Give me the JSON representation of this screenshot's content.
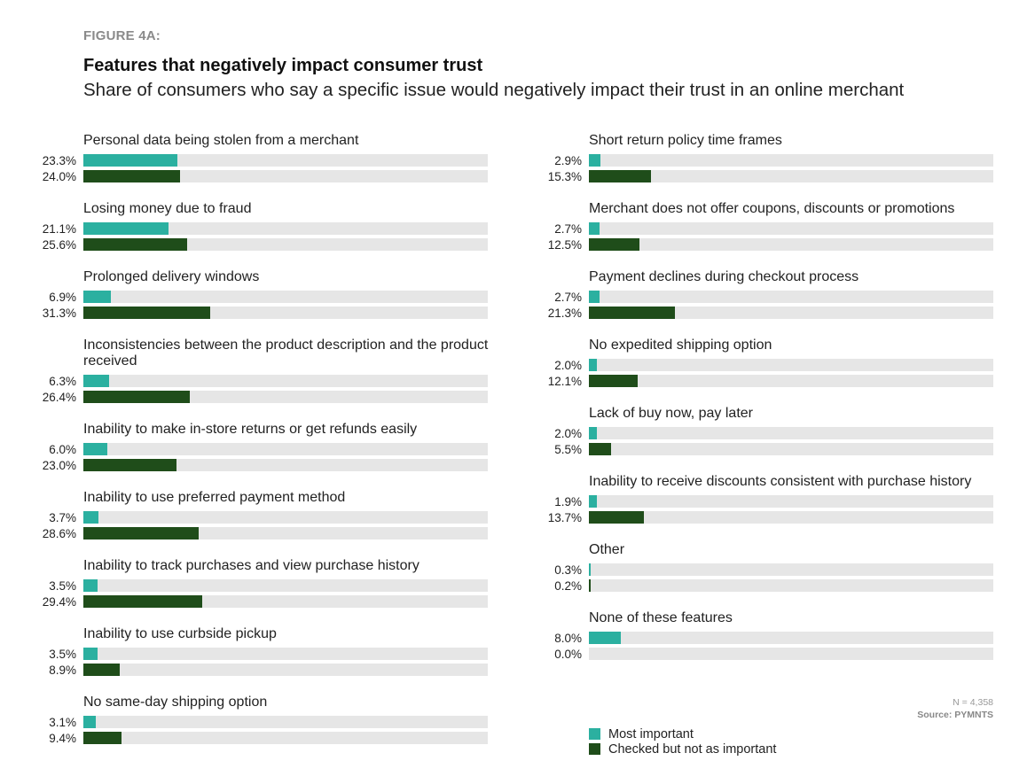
{
  "figure_label": "FIGURE 4A:",
  "chart_data": {
    "type": "bar",
    "orientation": "horizontal",
    "title": "Features that negatively impact consumer trust",
    "subtitle": "Share of consumers who say a specific issue would negatively impact their trust in an online merchant",
    "xlim": [
      0,
      100
    ],
    "unit": "%",
    "series": [
      {
        "name": "Most important",
        "color": "#2bb0a0"
      },
      {
        "name": "Checked but not as important",
        "color": "#1f4d1a"
      }
    ],
    "track_color": "#e6e6e6",
    "left": [
      {
        "label": "Personal data being stolen from a merchant",
        "values": [
          23.3,
          24.0
        ],
        "texts": [
          "23.3%",
          "24.0%"
        ]
      },
      {
        "label": "Losing money due to fraud",
        "values": [
          21.1,
          25.6
        ],
        "texts": [
          "21.1%",
          "25.6%"
        ]
      },
      {
        "label": "Prolonged delivery windows",
        "values": [
          6.9,
          31.3
        ],
        "texts": [
          "6.9%",
          "31.3%"
        ]
      },
      {
        "label": "Inconsistencies between the product description and the product received",
        "values": [
          6.3,
          26.4
        ],
        "texts": [
          "6.3%",
          "26.4%"
        ]
      },
      {
        "label": "Inability to make in-store returns or get refunds easily",
        "values": [
          6.0,
          23.0
        ],
        "texts": [
          "6.0%",
          "23.0%"
        ]
      },
      {
        "label": "Inability to use preferred payment method",
        "values": [
          3.7,
          28.6
        ],
        "texts": [
          "3.7%",
          "28.6%"
        ]
      },
      {
        "label": "Inability to track purchases and view purchase history",
        "values": [
          3.5,
          29.4
        ],
        "texts": [
          "3.5%",
          "29.4%"
        ]
      },
      {
        "label": "Inability to use curbside pickup",
        "values": [
          3.5,
          8.9
        ],
        "texts": [
          "3.5%",
          "8.9%"
        ]
      },
      {
        "label": "No same-day shipping option",
        "values": [
          3.1,
          9.4
        ],
        "texts": [
          "3.1%",
          "9.4%"
        ]
      }
    ],
    "right": [
      {
        "label": "Short return policy time frames",
        "values": [
          2.9,
          15.3
        ],
        "texts": [
          "2.9%",
          "15.3%"
        ]
      },
      {
        "label": "Merchant does not offer coupons, discounts or promotions",
        "values": [
          2.7,
          12.5
        ],
        "texts": [
          "2.7%",
          "12.5%"
        ]
      },
      {
        "label": "Payment declines during checkout process",
        "values": [
          2.7,
          21.3
        ],
        "texts": [
          "2.7%",
          "21.3%"
        ]
      },
      {
        "label": "No expedited shipping option",
        "values": [
          2.0,
          12.1
        ],
        "texts": [
          "2.0%",
          "12.1%"
        ]
      },
      {
        "label": "Lack of buy now, pay later",
        "values": [
          2.0,
          5.5
        ],
        "texts": [
          "2.0%",
          "5.5%"
        ]
      },
      {
        "label": "Inability to receive discounts consistent with purchase history",
        "values": [
          1.9,
          13.7
        ],
        "texts": [
          "1.9%",
          "13.7%"
        ]
      },
      {
        "label": "Other",
        "values": [
          0.3,
          0.2
        ],
        "texts": [
          "0.3%",
          "0.2%"
        ]
      },
      {
        "label": "None of these features",
        "values": [
          8.0,
          0.0
        ],
        "texts": [
          "8.0%",
          "0.0%"
        ]
      }
    ]
  },
  "n_note": "N = 4,358",
  "source": "Source: PYMNTS"
}
